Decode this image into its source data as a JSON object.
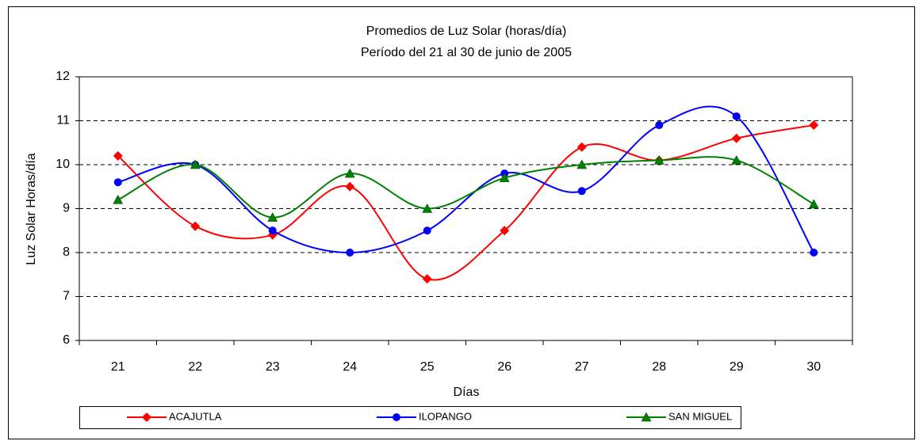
{
  "chart_data": {
    "type": "line",
    "title": "Promedios de Luz Solar (horas/día)",
    "subtitle": "Período del 21 al 30 de junio de 2005",
    "x_label": "Días",
    "y_label": "Luz Solar Horas/día",
    "categories": [
      "21",
      "22",
      "23",
      "24",
      "25",
      "26",
      "27",
      "28",
      "29",
      "30"
    ],
    "series": [
      {
        "name": "ACAJUTLA",
        "color": "#ff0000",
        "marker": "diamond",
        "values": [
          10.2,
          8.6,
          8.4,
          9.5,
          7.4,
          8.5,
          10.4,
          10.1,
          10.6,
          10.9
        ]
      },
      {
        "name": "ILOPANGO",
        "color": "#0000ff",
        "marker": "circle",
        "values": [
          9.6,
          10.0,
          8.5,
          8.0,
          8.5,
          9.8,
          9.4,
          10.9,
          11.1,
          8.0
        ]
      },
      {
        "name": "SAN MIGUEL",
        "color": "#008000",
        "marker": "triangle",
        "values": [
          9.2,
          10.0,
          8.8,
          9.8,
          9.0,
          9.7,
          10.0,
          10.1,
          10.1,
          9.1
        ]
      }
    ],
    "ylim": [
      6,
      12
    ],
    "yticks": [
      6,
      7,
      8,
      9,
      10,
      11,
      12
    ],
    "grid": true,
    "smooth": true,
    "legend": "bottom"
  }
}
